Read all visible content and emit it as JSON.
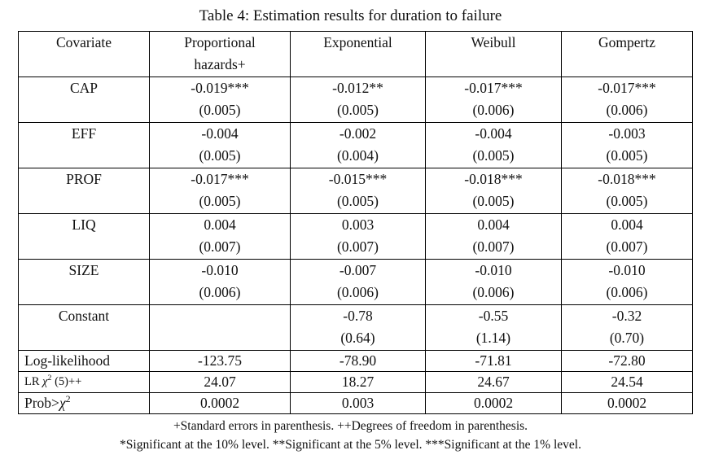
{
  "title": "Table 4: Estimation results for duration to failure",
  "table": {
    "headers": [
      {
        "line1": "Covariate",
        "line2": ""
      },
      {
        "line1": "Proportional",
        "line2": "hazards+"
      },
      {
        "line1": "Exponential",
        "line2": ""
      },
      {
        "line1": "Weibull",
        "line2": ""
      },
      {
        "line1": "Gompertz",
        "line2": ""
      }
    ],
    "covariates": [
      {
        "label": "CAP",
        "models": [
          {
            "coef": "-0.019***",
            "se": "(0.005)"
          },
          {
            "coef": "-0.012**",
            "se": "(0.005)"
          },
          {
            "coef": "-0.017***",
            "se": "(0.006)"
          },
          {
            "coef": "-0.017***",
            "se": "(0.006)"
          }
        ]
      },
      {
        "label": "EFF",
        "models": [
          {
            "coef": "-0.004",
            "se": "(0.005)"
          },
          {
            "coef": "-0.002",
            "se": "(0.004)"
          },
          {
            "coef": "-0.004",
            "se": "(0.005)"
          },
          {
            "coef": "-0.003",
            "se": "(0.005)"
          }
        ]
      },
      {
        "label": "PROF",
        "models": [
          {
            "coef": "-0.017***",
            "se": "(0.005)"
          },
          {
            "coef": "-0.015***",
            "se": "(0.005)"
          },
          {
            "coef": "-0.018***",
            "se": "(0.005)"
          },
          {
            "coef": "-0.018***",
            "se": "(0.005)"
          }
        ]
      },
      {
        "label": "LIQ",
        "models": [
          {
            "coef": "0.004",
            "se": "(0.007)"
          },
          {
            "coef": "0.003",
            "se": "(0.007)"
          },
          {
            "coef": "0.004",
            "se": "(0.007)"
          },
          {
            "coef": "0.004",
            "se": "(0.007)"
          }
        ]
      },
      {
        "label": "SIZE",
        "models": [
          {
            "coef": "-0.010",
            "se": "(0.006)"
          },
          {
            "coef": "-0.007",
            "se": "(0.006)"
          },
          {
            "coef": "-0.010",
            "se": "(0.006)"
          },
          {
            "coef": "-0.010",
            "se": "(0.006)"
          }
        ]
      },
      {
        "label": "Constant",
        "models": [
          {
            "coef": "",
            "se": ""
          },
          {
            "coef": "-0.78",
            "se": "(0.64)"
          },
          {
            "coef": "-0.55",
            "se": "(1.14)"
          },
          {
            "coef": "-0.32",
            "se": "(0.70)"
          }
        ]
      }
    ],
    "stats": [
      {
        "prefix": "Log-likelihood",
        "chi": "",
        "sup": "",
        "suffix": "",
        "values": [
          "-123.75",
          "-78.90",
          "-71.81",
          "-72.80"
        ]
      },
      {
        "prefix": "LR ",
        "chi": "χ",
        "sup": "2",
        "suffix": " (5)++",
        "values": [
          "24.07",
          "18.27",
          "24.67",
          "24.54"
        ]
      },
      {
        "prefix": "Prob>",
        "chi": "χ",
        "sup": "2",
        "suffix": "",
        "values": [
          "0.0002",
          "0.003",
          "0.0002",
          "0.0002"
        ]
      }
    ],
    "footnotes": [
      "+Standard errors in parenthesis. ++Degrees of freedom in parenthesis.",
      "*Significant at the 10% level. **Significant at the 5% level. ***Significant at the 1% level."
    ]
  }
}
